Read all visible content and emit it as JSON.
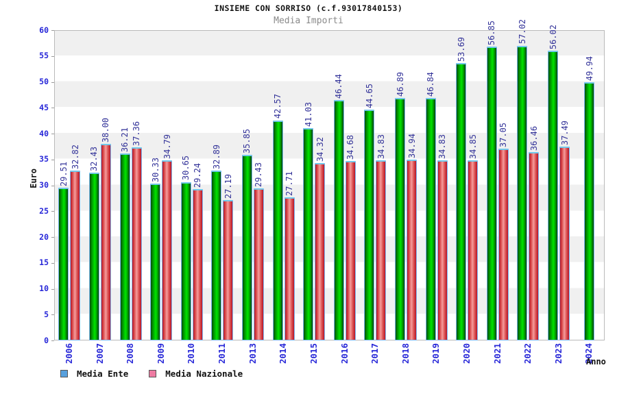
{
  "header": {
    "title": "INSIEME CON SORRISO (c.f.93017840153)",
    "subtitle": "Media Importi"
  },
  "axes": {
    "y_title": "Euro",
    "x_title": "Anno",
    "y_ticks": [
      0,
      5,
      10,
      15,
      20,
      25,
      30,
      35,
      40,
      45,
      50,
      55,
      60
    ]
  },
  "legend": {
    "items": [
      {
        "label": "Media Ente",
        "swatch_color": "#58a0dd"
      },
      {
        "label": "Media Nazionale",
        "swatch_color": "#ee7ba2"
      }
    ]
  },
  "colors": {
    "bar_green": "#00cc00",
    "bar_red": "#dd2233",
    "bar_border": "#79b7f2",
    "value_label": "#333399",
    "tick_label": "#2727d8",
    "band_gray": "#f0f0f0",
    "band_white": "#ffffff"
  },
  "chart_data": {
    "type": "bar",
    "title": "INSIEME CON SORRISO (c.f.93017840153)",
    "subtitle": "Media Importi",
    "xlabel": "Anno",
    "ylabel": "Euro",
    "ylim": [
      0,
      60
    ],
    "y_tick_step": 5,
    "legend_position": "bottom",
    "grid": "alternating-horizontal-bands",
    "categories": [
      "2006",
      "2007",
      "2008",
      "2009",
      "2010",
      "2011",
      "2013",
      "2014",
      "2015",
      "2016",
      "2017",
      "2018",
      "2019",
      "2020",
      "2021",
      "2022",
      "2023",
      "2024"
    ],
    "series": [
      {
        "name": "Media Ente",
        "color_key": "green",
        "values": [
          29.51,
          32.43,
          36.21,
          30.33,
          30.65,
          32.89,
          35.85,
          42.57,
          41.03,
          46.44,
          44.65,
          46.89,
          46.84,
          53.69,
          56.85,
          57.02,
          56.02,
          49.94
        ],
        "labels": [
          "29.51",
          "32.43",
          "36.21",
          "30.33",
          "30.65",
          "32.89",
          "35.85",
          "42.57",
          "41.03",
          "46.44",
          "44.65",
          "46.89",
          "46.84",
          "53.69",
          "56.85",
          "57.02",
          "56.02",
          "49.94"
        ]
      },
      {
        "name": "Media Nazionale",
        "color_key": "red",
        "values": [
          32.82,
          38.0,
          37.36,
          34.79,
          29.24,
          27.19,
          29.43,
          27.71,
          34.32,
          34.68,
          34.83,
          34.94,
          34.83,
          34.85,
          37.05,
          36.46,
          37.49,
          null
        ],
        "labels": [
          "32.82",
          "38.00",
          "37.36",
          "34.79",
          "29.24",
          "27.19",
          "29.43",
          "27.71",
          "34.32",
          "34.68",
          "34.83",
          "34.94",
          "34.83",
          "34.85",
          "37.05",
          "36.46",
          "37.49",
          null
        ]
      }
    ]
  }
}
